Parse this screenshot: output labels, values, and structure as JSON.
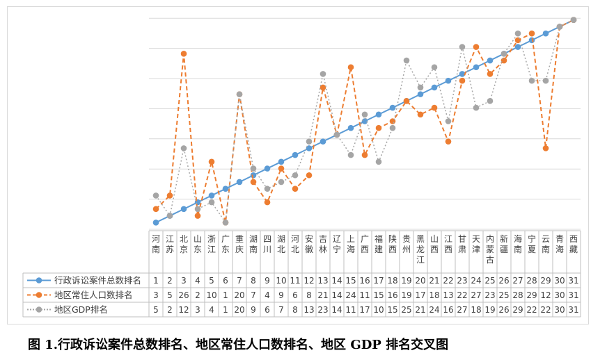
{
  "caption": "图 1.行政诉讼案件总数排名、地区常住人口数排名、地区 GDP 排名交叉图",
  "chart_data": {
    "type": "line",
    "categories": [
      "河南",
      "江苏",
      "北京",
      "山东",
      "浙江",
      "广东",
      "重庆",
      "湖南",
      "四川",
      "湖北",
      "河北",
      "安徽",
      "吉林",
      "辽宁",
      "上海",
      "广西",
      "福建",
      "陕西",
      "贵州",
      "黑龙江",
      "山西",
      "江西",
      "甘肃",
      "天津",
      "内蒙古",
      "新疆",
      "海南",
      "宁夏",
      "云南",
      "青海",
      "西藏"
    ],
    "series": [
      {
        "name": "行政诉讼案件总数排名",
        "color": "#5b9bd5",
        "style": "solid",
        "values": [
          1,
          2,
          3,
          4,
          5,
          6,
          7,
          8,
          9,
          10,
          11,
          12,
          13,
          14,
          15,
          16,
          17,
          18,
          19,
          20,
          21,
          22,
          23,
          24,
          25,
          26,
          27,
          28,
          29,
          30,
          31
        ]
      },
      {
        "name": "地区常住人口数排名",
        "color": "#ed7d31",
        "style": "dashed",
        "values": [
          3,
          5,
          26,
          2,
          10,
          1,
          20,
          7,
          4,
          9,
          6,
          8,
          21,
          14,
          24,
          11,
          15,
          16,
          19,
          17,
          18,
          13,
          22,
          27,
          23,
          25,
          28,
          29,
          12,
          30,
          31
        ]
      },
      {
        "name": "地区GDP排名",
        "color": "#a5a5a5",
        "style": "dotted",
        "values": [
          5,
          2,
          12,
          3,
          4,
          1,
          20,
          9,
          6,
          7,
          8,
          13,
          23,
          14,
          11,
          17,
          10,
          15,
          25,
          21,
          24,
          16,
          27,
          18,
          19,
          26,
          29,
          22,
          22,
          30,
          31
        ]
      }
    ],
    "ylim": [
      0,
      32
    ],
    "grid": true
  }
}
